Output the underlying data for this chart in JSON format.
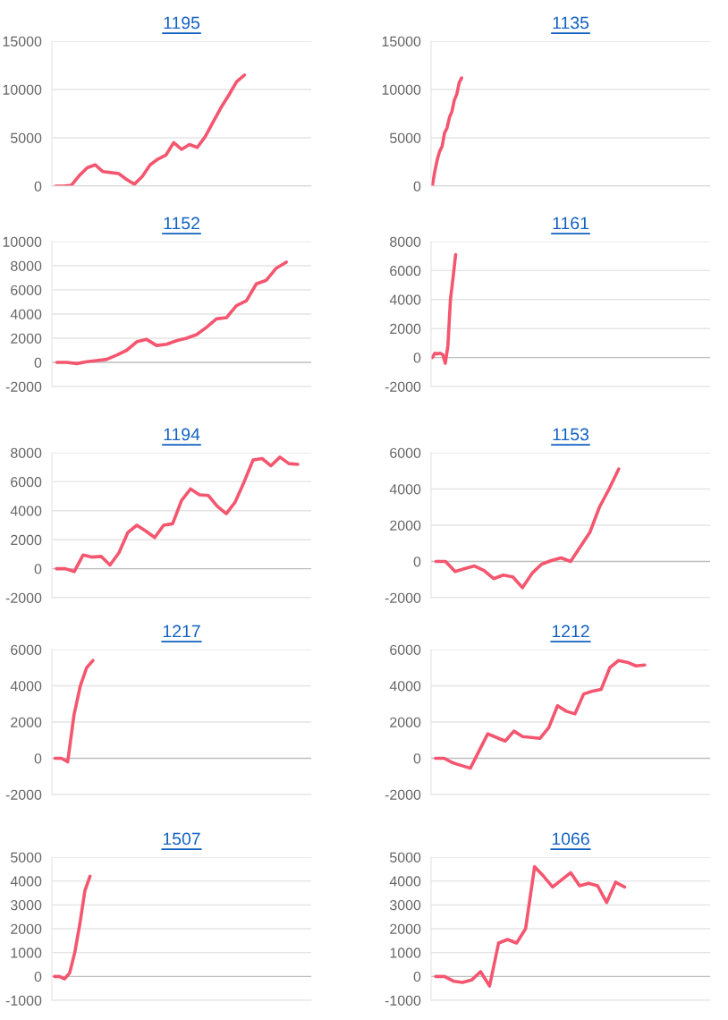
{
  "chart_data": [
    {
      "type": "line",
      "title": "1195",
      "categories": [
        null,
        null,
        null,
        null,
        null,
        null,
        null,
        null,
        null,
        null,
        null,
        null,
        null,
        null,
        null,
        null,
        null,
        null,
        null,
        null,
        null,
        null,
        null,
        null,
        null,
        null,
        null,
        null,
        null,
        null,
        null,
        null,
        null
      ],
      "series": [
        {
          "color": "#f4566f",
          "values": [
            0,
            0,
            100,
            1100,
            1900,
            2200,
            1500,
            1400,
            1300,
            700,
            200,
            1000,
            2200,
            2800,
            3200,
            4500,
            3800,
            4300,
            4000,
            5100,
            6600,
            8100,
            9400,
            10800,
            11500,
            null,
            null,
            null,
            null,
            null,
            null,
            null,
            null
          ]
        }
      ],
      "ylim": [
        0,
        15000
      ],
      "yticks": [
        0,
        5000,
        10000,
        15000
      ],
      "grid": "y",
      "tick_labels": "y",
      "marker": "none",
      "line_style": "solid"
    },
    {
      "type": "line",
      "title": "1135",
      "categories": [
        null,
        null,
        null,
        null,
        null,
        null,
        null,
        null,
        null,
        null,
        null,
        null,
        null,
        null,
        null,
        null,
        null,
        null,
        null,
        null,
        null,
        null,
        null,
        null,
        null,
        null,
        null,
        null,
        null,
        null,
        null,
        null,
        null,
        null,
        null,
        null,
        null,
        null,
        null,
        null,
        null,
        null,
        null,
        null,
        null,
        null,
        null,
        null,
        null,
        null,
        null,
        null,
        null,
        null,
        null,
        null,
        null,
        null,
        null,
        null,
        null,
        null,
        null,
        null,
        null,
        null,
        null,
        null,
        null,
        null,
        null,
        null,
        null,
        null,
        null,
        null,
        null,
        null,
        null,
        null,
        null,
        null,
        null,
        null,
        null,
        null,
        null,
        null,
        null,
        null,
        null,
        null,
        null,
        null,
        null,
        null,
        null,
        null,
        null,
        null,
        null,
        null,
        null,
        null,
        null,
        null,
        null,
        null,
        null,
        null,
        null,
        null,
        null,
        null
      ],
      "series": [
        {
          "color": "#f4566f",
          "values": [
            0,
            1500,
            2700,
            3600,
            4100,
            5500,
            6000,
            7100,
            7700,
            8900,
            9500,
            10700,
            11200,
            null,
            null,
            null,
            null,
            null,
            null,
            null,
            null,
            null,
            null,
            null,
            null,
            null,
            null,
            null,
            null,
            null,
            null,
            null,
            null,
            null,
            null,
            null,
            null,
            null,
            null,
            null,
            null,
            null,
            null,
            null,
            null,
            null,
            null,
            null,
            null,
            null,
            null,
            null,
            null,
            null,
            null,
            null,
            null,
            null,
            null,
            null,
            null,
            null,
            null,
            null,
            null,
            null,
            null,
            null,
            null,
            null,
            null,
            null,
            null,
            null,
            null,
            null,
            null,
            null,
            null,
            null,
            null,
            null,
            null,
            null,
            null,
            null,
            null,
            null,
            null,
            null,
            null,
            null,
            null,
            null,
            null,
            null,
            null,
            null,
            null,
            null,
            null,
            null,
            null,
            null,
            null,
            null,
            null,
            null,
            null,
            null,
            null,
            null,
            null,
            null
          ]
        }
      ],
      "ylim": [
        0,
        15000
      ],
      "yticks": [
        0,
        5000,
        10000,
        15000
      ],
      "grid": "y",
      "tick_labels": "y",
      "marker": "none",
      "line_style": "solid"
    },
    {
      "type": "line",
      "title": "1152",
      "categories": [
        null,
        null,
        null,
        null,
        null,
        null,
        null,
        null,
        null,
        null,
        null,
        null,
        null,
        null,
        null,
        null,
        null,
        null,
        null,
        null,
        null,
        null,
        null,
        null,
        null,
        null
      ],
      "series": [
        {
          "color": "#f4566f",
          "values": [
            0,
            0,
            -100,
            50,
            150,
            250,
            600,
            1000,
            1700,
            1900,
            1400,
            1500,
            1800,
            2000,
            2300,
            2900,
            3600,
            3700,
            4700,
            5100,
            6500,
            6800,
            7800,
            8300,
            null,
            null
          ]
        }
      ],
      "ylim": [
        -2000,
        10000
      ],
      "yticks": [
        -2000,
        0,
        2000,
        4000,
        6000,
        8000,
        10000
      ],
      "grid": "y",
      "tick_labels": "y",
      "marker": "none",
      "line_style": "solid"
    },
    {
      "type": "line",
      "title": "1161",
      "categories": [
        null,
        null,
        null,
        null,
        null,
        null,
        null,
        null,
        null,
        null,
        null,
        null,
        null,
        null,
        null,
        null,
        null,
        null,
        null,
        null,
        null,
        null,
        null,
        null,
        null,
        null,
        null,
        null,
        null,
        null,
        null,
        null,
        null,
        null,
        null,
        null,
        null,
        null,
        null,
        null,
        null,
        null,
        null,
        null,
        null,
        null,
        null,
        null,
        null,
        null,
        null,
        null,
        null,
        null,
        null,
        null,
        null,
        null,
        null,
        null,
        null,
        null,
        null,
        null,
        null,
        null,
        null,
        null,
        null,
        null,
        null,
        null,
        null,
        null,
        null,
        null,
        null,
        null,
        null,
        null,
        null,
        null,
        null,
        null,
        null,
        null,
        null,
        null,
        null,
        null,
        null,
        null,
        null,
        null,
        null,
        null,
        null,
        null,
        null,
        null,
        null,
        null,
        null,
        null,
        null,
        null,
        null,
        null
      ],
      "series": [
        {
          "color": "#f4566f",
          "values": [
            0,
            300,
            250,
            300,
            200,
            -400,
            800,
            4000,
            5500,
            7100,
            null,
            null,
            null,
            null,
            null,
            null,
            null,
            null,
            null,
            null,
            null,
            null,
            null,
            null,
            null,
            null,
            null,
            null,
            null,
            null,
            null,
            null,
            null,
            null,
            null,
            null,
            null,
            null,
            null,
            null,
            null,
            null,
            null,
            null,
            null,
            null,
            null,
            null,
            null,
            null,
            null,
            null,
            null,
            null,
            null,
            null,
            null,
            null,
            null,
            null,
            null,
            null,
            null,
            null,
            null,
            null,
            null,
            null,
            null,
            null,
            null,
            null,
            null,
            null,
            null,
            null,
            null,
            null,
            null,
            null,
            null,
            null,
            null,
            null,
            null,
            null,
            null,
            null,
            null,
            null,
            null,
            null,
            null,
            null,
            null,
            null,
            null,
            null,
            null,
            null,
            null,
            null,
            null,
            null,
            null,
            null,
            null,
            null
          ]
        }
      ],
      "ylim": [
        -2000,
        8000
      ],
      "yticks": [
        -2000,
        0,
        2000,
        4000,
        6000,
        8000
      ],
      "grid": "y",
      "tick_labels": "y",
      "marker": "none",
      "line_style": "solid"
    },
    {
      "type": "line",
      "title": "1194",
      "categories": [
        null,
        null,
        null,
        null,
        null,
        null,
        null,
        null,
        null,
        null,
        null,
        null,
        null,
        null,
        null,
        null,
        null,
        null,
        null,
        null,
        null,
        null,
        null,
        null,
        null,
        null,
        null,
        null,
        null
      ],
      "series": [
        {
          "color": "#f4566f",
          "values": [
            0,
            0,
            -200,
            950,
            800,
            850,
            250,
            1100,
            2500,
            3000,
            2600,
            2150,
            3000,
            3100,
            4700,
            5500,
            5100,
            5050,
            4300,
            3800,
            4600,
            6000,
            7500,
            7600,
            7100,
            7700,
            7250,
            7200,
            null
          ]
        }
      ],
      "ylim": [
        -2000,
        8000
      ],
      "yticks": [
        -2000,
        0,
        2000,
        4000,
        6000,
        8000
      ],
      "grid": "y",
      "tick_labels": "y",
      "marker": "none",
      "line_style": "solid"
    },
    {
      "type": "line",
      "title": "1153",
      "categories": [
        null,
        null,
        null,
        null,
        null,
        null,
        null,
        null,
        null,
        null,
        null,
        null,
        null,
        null,
        null,
        null,
        null,
        null,
        null,
        null,
        null,
        null,
        null,
        null,
        null,
        null,
        null,
        null,
        null
      ],
      "series": [
        {
          "color": "#f4566f",
          "values": [
            0,
            0,
            -550,
            -400,
            -250,
            -500,
            -950,
            -750,
            -850,
            -1450,
            -650,
            -150,
            50,
            200,
            0,
            800,
            1600,
            3000,
            4000,
            5100,
            null,
            null,
            null,
            null,
            null,
            null,
            null,
            null,
            null
          ]
        }
      ],
      "ylim": [
        -2000,
        6000
      ],
      "yticks": [
        -2000,
        0,
        2000,
        4000,
        6000
      ],
      "grid": "y",
      "tick_labels": "y",
      "marker": "none",
      "line_style": "solid"
    },
    {
      "type": "line",
      "title": "1217",
      "categories": [
        null,
        null,
        null,
        null,
        null,
        null,
        null,
        null,
        null,
        null,
        null,
        null,
        null,
        null,
        null,
        null,
        null,
        null,
        null,
        null,
        null,
        null,
        null,
        null,
        null,
        null,
        null,
        null,
        null,
        null,
        null,
        null,
        null,
        null,
        null,
        null,
        null,
        null,
        null,
        null,
        null
      ],
      "series": [
        {
          "color": "#f4566f",
          "values": [
            0,
            0,
            -200,
            2400,
            4000,
            5000,
            5400,
            null,
            null,
            null,
            null,
            null,
            null,
            null,
            null,
            null,
            null,
            null,
            null,
            null,
            null,
            null,
            null,
            null,
            null,
            null,
            null,
            null,
            null,
            null,
            null,
            null,
            null,
            null,
            null,
            null,
            null,
            null,
            null,
            null,
            null
          ]
        }
      ],
      "ylim": [
        -2000,
        6000
      ],
      "yticks": [
        -2000,
        0,
        2000,
        4000,
        6000
      ],
      "grid": "y",
      "tick_labels": "y",
      "marker": "none",
      "line_style": "solid"
    },
    {
      "type": "line",
      "title": "1212",
      "categories": [
        null,
        null,
        null,
        null,
        null,
        null,
        null,
        null,
        null,
        null,
        null,
        null,
        null,
        null,
        null,
        null,
        null,
        null,
        null,
        null,
        null,
        null,
        null,
        null,
        null,
        null,
        null,
        null,
        null,
        null,
        null,
        null
      ],
      "series": [
        {
          "color": "#f4566f",
          "values": [
            0,
            0,
            -250,
            -400,
            -550,
            400,
            1350,
            1150,
            950,
            1500,
            1200,
            1150,
            1100,
            1700,
            2900,
            2600,
            2450,
            3550,
            3700,
            3800,
            5000,
            5400,
            5300,
            5100,
            5150,
            null,
            null,
            null,
            null,
            null,
            null,
            null
          ]
        }
      ],
      "ylim": [
        -2000,
        6000
      ],
      "yticks": [
        -2000,
        0,
        2000,
        4000,
        6000
      ],
      "grid": "y",
      "tick_labels": "y",
      "marker": "none",
      "line_style": "solid"
    },
    {
      "type": "line",
      "title": "1507",
      "categories": [
        null,
        null,
        null,
        null,
        null,
        null,
        null,
        null,
        null,
        null,
        null,
        null,
        null,
        null,
        null,
        null,
        null,
        null,
        null,
        null,
        null,
        null,
        null,
        null,
        null,
        null,
        null,
        null,
        null,
        null,
        null,
        null,
        null,
        null,
        null,
        null,
        null,
        null,
        null,
        null,
        null,
        null,
        null,
        null,
        null,
        null,
        null,
        null,
        null,
        null,
        null
      ],
      "series": [
        {
          "color": "#f4566f",
          "values": [
            0,
            0,
            -100,
            150,
            1000,
            2200,
            3600,
            4200,
            null,
            null,
            null,
            null,
            null,
            null,
            null,
            null,
            null,
            null,
            null,
            null,
            null,
            null,
            null,
            null,
            null,
            null,
            null,
            null,
            null,
            null,
            null,
            null,
            null,
            null,
            null,
            null,
            null,
            null,
            null,
            null,
            null,
            null,
            null,
            null,
            null,
            null,
            null,
            null,
            null,
            null,
            null
          ]
        }
      ],
      "ylim": [
        -1000,
        5000
      ],
      "yticks": [
        -1000,
        0,
        1000,
        2000,
        3000,
        4000,
        5000
      ],
      "grid": "y",
      "tick_labels": "y",
      "marker": "none",
      "line_style": "solid"
    },
    {
      "type": "line",
      "title": "1066",
      "categories": [
        null,
        null,
        null,
        null,
        null,
        null,
        null,
        null,
        null,
        null,
        null,
        null,
        null,
        null,
        null,
        null,
        null,
        null,
        null,
        null,
        null,
        null,
        null,
        null,
        null,
        null,
        null,
        null,
        null,
        null,
        null
      ],
      "series": [
        {
          "color": "#f4566f",
          "values": [
            0,
            0,
            -200,
            -250,
            -150,
            200,
            -400,
            1400,
            1550,
            1400,
            2000,
            4600,
            4200,
            3750,
            4050,
            4350,
            3800,
            3900,
            3800,
            3100,
            3950,
            3750,
            null,
            null,
            null,
            null,
            null,
            null,
            null,
            null,
            null
          ]
        }
      ],
      "ylim": [
        -1000,
        5000
      ],
      "yticks": [
        -1000,
        0,
        1000,
        2000,
        3000,
        4000,
        5000
      ],
      "grid": "y",
      "tick_labels": "y",
      "marker": "none",
      "line_style": "solid"
    }
  ]
}
